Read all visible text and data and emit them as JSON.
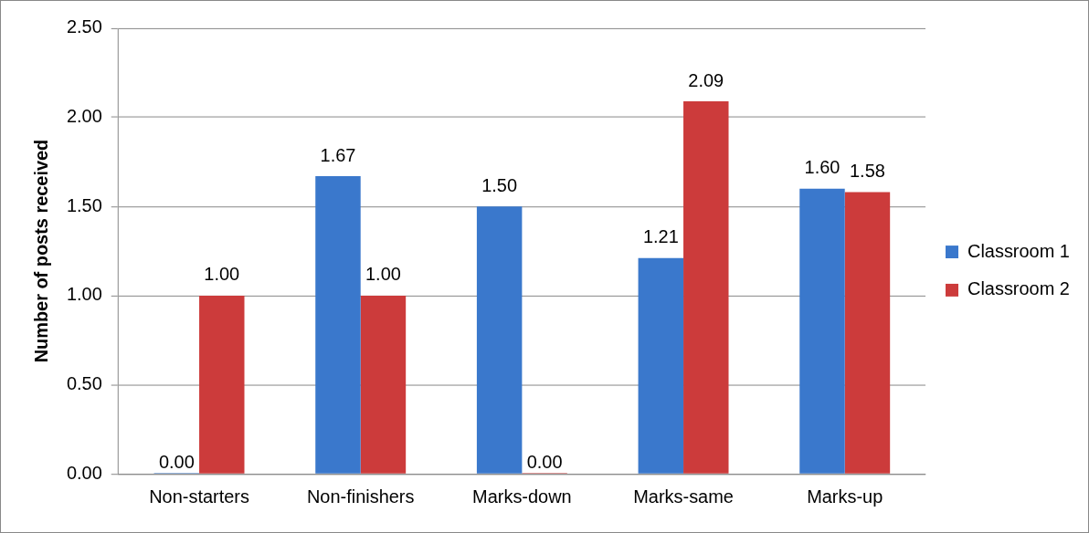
{
  "chart_data": {
    "type": "bar",
    "ylabel": "Number of posts received",
    "categories": [
      "Non-starters",
      "Non-finishers",
      "Marks-down",
      "Marks-same",
      "Marks-up"
    ],
    "series": [
      {
        "name": "Classroom 1",
        "color": "#3a78cc",
        "values": [
          0,
          1.67,
          1.5,
          1.21,
          1.6
        ],
        "value_labels": [
          "0.00",
          "1.67",
          "1.50",
          "1.21",
          "1.60"
        ]
      },
      {
        "name": "Classroom 2",
        "color": "#cc3b3b",
        "values": [
          1,
          1,
          0,
          2.09,
          1.58
        ],
        "value_labels": [
          "1.00",
          "1.00",
          "0.00",
          "2.09",
          "1.58"
        ]
      }
    ],
    "ylim": [
      0,
      2.5
    ],
    "yticks": [
      {
        "value": 0,
        "label": "0.00"
      },
      {
        "value": 0.5,
        "label": "0.50"
      },
      {
        "value": 1,
        "label": "1.00"
      },
      {
        "value": 1.5,
        "label": "1.50"
      },
      {
        "value": 2,
        "label": "2.00"
      },
      {
        "value": 2.5,
        "label": "2.50"
      }
    ],
    "grid": "y",
    "legend": "right"
  }
}
